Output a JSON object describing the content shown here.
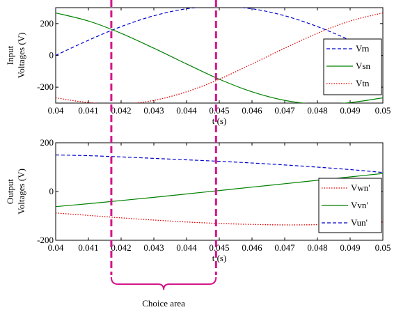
{
  "chart_data": [
    {
      "type": "line",
      "xlabel": "t (s)",
      "ylabel": [
        "Input",
        "Voltages (V)"
      ],
      "xlim": [
        0.04,
        0.05
      ],
      "ylim": [
        -300,
        300
      ],
      "xticks": [
        "0.04",
        "0.041",
        "0.042",
        "0.043",
        "0.044",
        "0.045",
        "0.046",
        "0.047",
        "0.048",
        "0.049",
        "0.05"
      ],
      "yticks": [
        "200",
        "0",
        "-200"
      ],
      "legend_position": "right",
      "series": [
        {
          "name": "Vrn",
          "color": "#0000cc",
          "style": "dashed",
          "x": [
            0.04,
            0.041,
            0.042,
            0.043,
            0.044,
            0.045,
            0.046,
            0.047,
            0.048,
            0.049,
            0.05
          ],
          "y": [
            0,
            95,
            181,
            249,
            293,
            308,
            293,
            249,
            181,
            95,
            0
          ]
        },
        {
          "name": "Vsn",
          "color": "#008000",
          "style": "solid",
          "x": [
            0.04,
            0.041,
            0.042,
            0.043,
            0.044,
            0.045,
            0.046,
            0.047,
            0.048,
            0.049,
            0.05
          ],
          "y": [
            267,
            216,
            139,
            45,
            -54,
            -150,
            -229,
            -283,
            -307,
            -297,
            -267
          ]
        },
        {
          "name": "Vtn",
          "color": "#e00000",
          "style": "dotted",
          "x": [
            0.04,
            0.041,
            0.042,
            0.043,
            0.044,
            0.045,
            0.046,
            0.047,
            0.048,
            0.049,
            0.05
          ],
          "y": [
            -267,
            -297,
            -307,
            -283,
            -229,
            -150,
            -54,
            45,
            139,
            216,
            267
          ]
        }
      ]
    },
    {
      "type": "line",
      "xlabel": "t (s)",
      "ylabel": [
        "Output",
        "Voltages (V)"
      ],
      "xlim": [
        0.04,
        0.05
      ],
      "ylim": [
        -200,
        200
      ],
      "xticks": [
        "0.04",
        "0.041",
        "0.042",
        "0.043",
        "0.044",
        "0.045",
        "0.046",
        "0.047",
        "0.048",
        "0.049",
        "0.05"
      ],
      "yticks": [
        "200",
        "0",
        "-200"
      ],
      "legend_position": "right",
      "series": [
        {
          "name": "Vwn'",
          "color": "#e00000",
          "style": "dotted",
          "x": [
            0.04,
            0.041,
            0.042,
            0.043,
            0.044,
            0.045,
            0.046,
            0.047,
            0.048,
            0.049,
            0.05
          ],
          "y": [
            -88,
            -98,
            -108,
            -117,
            -125,
            -131,
            -135,
            -137,
            -136,
            -132,
            -125
          ]
        },
        {
          "name": "Vvn'",
          "color": "#008000",
          "style": "solid",
          "x": [
            0.04,
            0.041,
            0.042,
            0.043,
            0.044,
            0.045,
            0.046,
            0.047,
            0.048,
            0.049,
            0.05
          ],
          "y": [
            -62,
            -50,
            -37,
            -24,
            -10,
            4,
            18,
            32,
            46,
            60,
            74
          ]
        },
        {
          "name": "Vun'",
          "color": "#0000cc",
          "style": "dashed",
          "x": [
            0.04,
            0.041,
            0.042,
            0.043,
            0.044,
            0.045,
            0.046,
            0.047,
            0.048,
            0.049,
            0.05
          ],
          "y": [
            150,
            147,
            142,
            136,
            130,
            124,
            117,
            109,
            100,
            90,
            78
          ]
        }
      ]
    }
  ],
  "annotation": {
    "label": "Choice area",
    "x_start": 0.0417,
    "x_end": 0.0449,
    "color": "#d4148a"
  }
}
